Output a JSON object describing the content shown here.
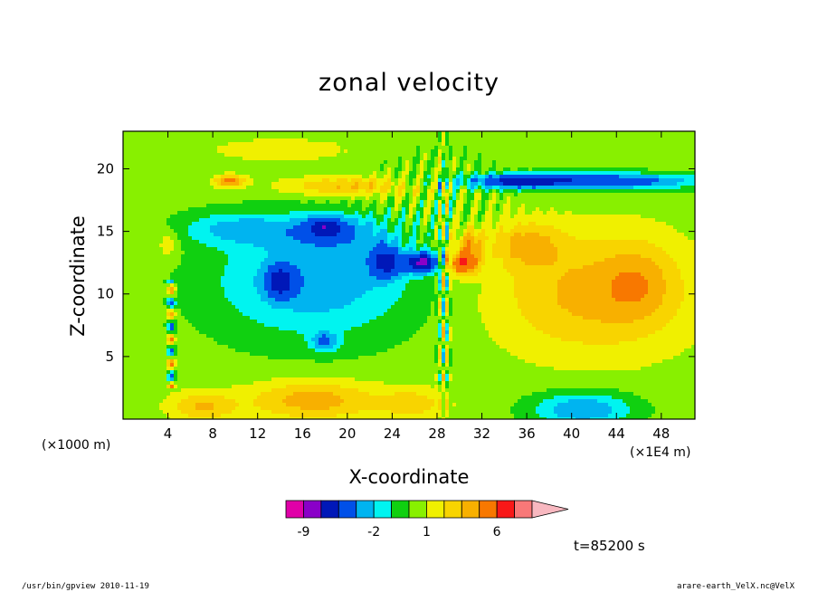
{
  "chart_data": {
    "type": "heatmap",
    "title": "zonal velocity",
    "xlabel": "X-coordinate",
    "ylabel": "Z-coordinate",
    "x_unit_label": "(×1E4 m)",
    "y_unit_label": "(×1000 m)",
    "xlim": [
      0,
      51
    ],
    "ylim": [
      0,
      23
    ],
    "x_ticks": [
      4,
      8,
      12,
      16,
      20,
      24,
      28,
      32,
      36,
      40,
      44,
      48
    ],
    "y_ticks": [
      5,
      10,
      15,
      20
    ],
    "colorbar": {
      "levels": [
        -11,
        -9,
        -7,
        -5,
        -3,
        -2,
        -1,
        0,
        1,
        2,
        3,
        4,
        6,
        8,
        10,
        12
      ],
      "tick_labels": [
        "-9",
        "-2",
        "1",
        "6"
      ],
      "tick_values": [
        -9,
        -2,
        1,
        6
      ],
      "colors": [
        "#e000a8",
        "#8a00c8",
        "#0018b8",
        "#0050e8",
        "#00b4f0",
        "#00f4f0",
        "#10d010",
        "#88f000",
        "#f0f000",
        "#f8d400",
        "#f8b000",
        "#f87800",
        "#f81818",
        "#f87878",
        "#f8b8c0"
      ]
    },
    "features": [
      {
        "kind": "strong shear zone",
        "x": 28.5,
        "z": 12.5,
        "value_west": -7,
        "value_east": 5
      },
      {
        "kind": "narrow shear column",
        "x": 4.3,
        "z_range": [
          3,
          11
        ]
      },
      {
        "kind": "negative band",
        "z": 19,
        "x_range": [
          32,
          51
        ],
        "value": -6
      },
      {
        "kind": "positive region",
        "x_range": [
          34,
          50
        ],
        "z_range": [
          5,
          16
        ],
        "value": 3
      },
      {
        "kind": "positive core",
        "x": 9.5,
        "z": 19,
        "value": 5
      },
      {
        "kind": "negative region",
        "x_range": [
          8,
          26
        ],
        "z_range": [
          6,
          17
        ],
        "value": -3
      },
      {
        "kind": "positive surface layer",
        "x_range": [
          10,
          24
        ],
        "z_range": [
          0,
          3
        ],
        "value": 3
      },
      {
        "kind": "negative surface pool",
        "x_range": [
          36,
          46
        ],
        "z_range": [
          0,
          2.5
        ],
        "value": -3
      }
    ]
  },
  "timestamp": "t=85200 s",
  "footer_left": "/usr/bin/gpview   2010-11-19",
  "footer_right": "arare-earth_VelX.nc@VelX"
}
